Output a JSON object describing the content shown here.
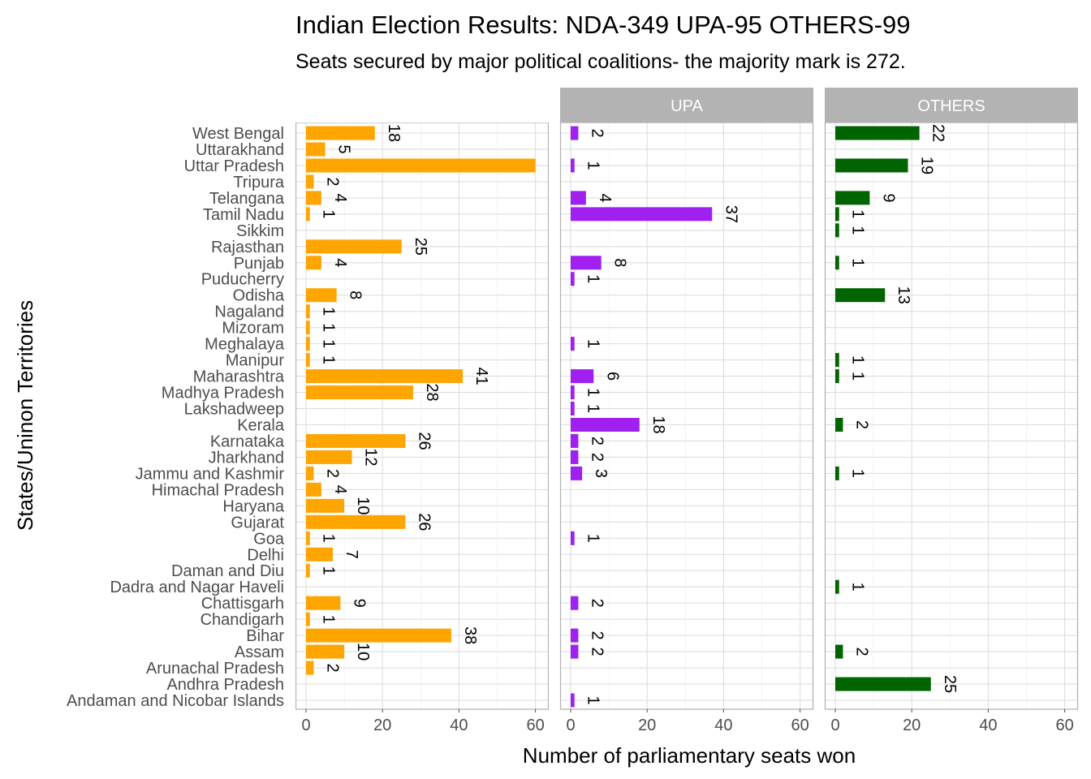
{
  "chart_data": {
    "type": "bar",
    "orientation": "horizontal",
    "faceted": true,
    "title": "Indian Election Results: NDA-349 UPA-95 OTHERS-99",
    "subtitle": "Seats secured by major political coalitions- the majority mark is 272.",
    "xlabel": "Number of parliamentary seats won",
    "ylabel": "States/Uninon Territories",
    "xlim": [
      0,
      62
    ],
    "xticks": [
      "0",
      "20",
      "40",
      "60"
    ],
    "grid": true,
    "categories": [
      "Andaman and Nicobar Islands",
      "Andhra Pradesh",
      "Arunachal Pradesh",
      "Assam",
      "Bihar",
      "Chandigarh",
      "Chattisgarh",
      "Dadra and Nagar Haveli",
      "Daman and Diu",
      "Delhi",
      "Goa",
      "Gujarat",
      "Haryana",
      "Himachal Pradesh",
      "Jammu and Kashmir",
      "Jharkhand",
      "Karnataka",
      "Kerala",
      "Lakshadweep",
      "Madhya Pradesh",
      "Maharashtra",
      "Manipur",
      "Meghalaya",
      "Mizoram",
      "Nagaland",
      "Odisha",
      "Puducherry",
      "Punjab",
      "Rajasthan",
      "Sikkim",
      "Tamil Nadu",
      "Telangana",
      "Tripura",
      "Uttar Pradesh",
      "Uttarakhand",
      "West Bengal"
    ],
    "series": [
      {
        "name": "NDA",
        "color": "#FFA500",
        "values": [
          null,
          null,
          2,
          10,
          38,
          1,
          9,
          null,
          1,
          7,
          1,
          26,
          10,
          4,
          2,
          12,
          26,
          null,
          null,
          28,
          41,
          1,
          1,
          1,
          1,
          8,
          null,
          4,
          25,
          null,
          1,
          4,
          2,
          60,
          5,
          18
        ]
      },
      {
        "name": "UPA",
        "color": "#A020F0",
        "values": [
          1,
          null,
          null,
          2,
          2,
          null,
          2,
          null,
          null,
          null,
          1,
          null,
          null,
          null,
          3,
          2,
          2,
          18,
          1,
          1,
          6,
          null,
          1,
          null,
          null,
          null,
          1,
          8,
          null,
          null,
          37,
          4,
          null,
          1,
          null,
          2
        ]
      },
      {
        "name": "OTHERS",
        "color": "#006400",
        "values": [
          null,
          25,
          null,
          2,
          null,
          null,
          null,
          1,
          null,
          null,
          null,
          null,
          null,
          null,
          1,
          null,
          null,
          2,
          null,
          null,
          1,
          1,
          null,
          null,
          null,
          13,
          null,
          1,
          null,
          1,
          1,
          9,
          null,
          19,
          null,
          22
        ]
      }
    ]
  }
}
